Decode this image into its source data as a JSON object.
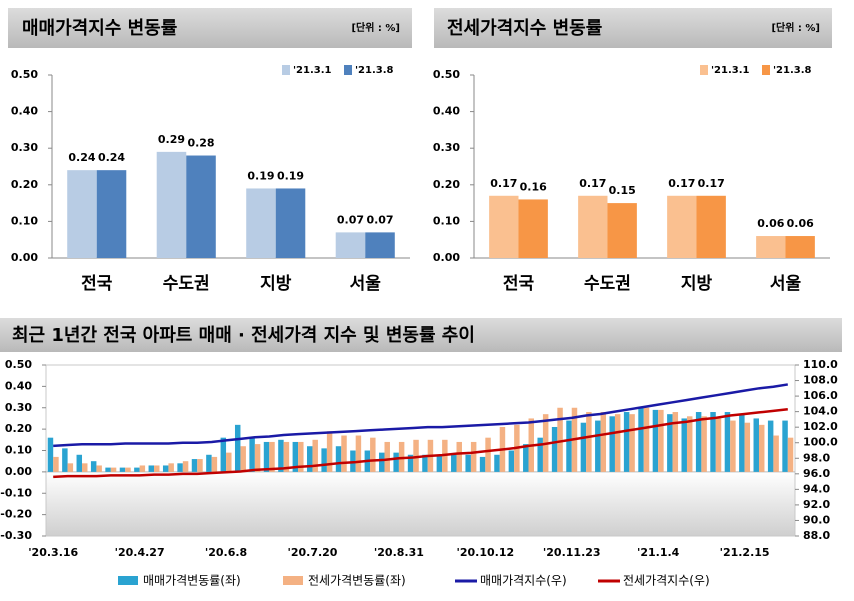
{
  "chart_data": [
    {
      "type": "bar",
      "title": "매매가격지수 변동률",
      "unit": "[단위 : %]",
      "categories": [
        "전국",
        "수도권",
        "지방",
        "서울"
      ],
      "series": [
        {
          "name": "'21.3.1",
          "color": "#b8cce4",
          "values": [
            0.24,
            0.29,
            0.19,
            0.07
          ]
        },
        {
          "name": "'21.3.8",
          "color": "#4f81bd",
          "values": [
            0.24,
            0.28,
            0.19,
            0.07
          ]
        }
      ],
      "ylim": [
        0,
        0.5
      ],
      "yticks": [
        {
          "value": 0,
          "label": "0.00"
        },
        {
          "value": 0.1,
          "label": "0.10"
        },
        {
          "value": 0.2,
          "label": "0.20"
        },
        {
          "value": 0.3,
          "label": "0.30"
        },
        {
          "value": 0.4,
          "label": "0.40"
        },
        {
          "value": 0.5,
          "label": "0.50"
        }
      ],
      "legend": "top-right"
    },
    {
      "type": "bar",
      "title": "전세가격지수 변동률",
      "unit": "[단위 : %]",
      "categories": [
        "전국",
        "수도권",
        "지방",
        "서울"
      ],
      "series": [
        {
          "name": "'21.3.1",
          "color": "#fac090",
          "values": [
            0.17,
            0.17,
            0.17,
            0.06
          ]
        },
        {
          "name": "'21.3.8",
          "color": "#f79646",
          "values": [
            0.16,
            0.15,
            0.17,
            0.06
          ]
        }
      ],
      "ylim": [
        0,
        0.5
      ],
      "yticks": [
        {
          "value": 0,
          "label": "0.00"
        },
        {
          "value": 0.1,
          "label": "0.10"
        },
        {
          "value": 0.2,
          "label": "0.20"
        },
        {
          "value": 0.3,
          "label": "0.30"
        },
        {
          "value": 0.4,
          "label": "0.40"
        },
        {
          "value": 0.5,
          "label": "0.50"
        }
      ],
      "legend": "top-right"
    },
    {
      "type": "combo",
      "title": "최근 1년간 전국 아파트 매매 · 전세가격 지수 및 변동률 추이",
      "categories": [
        "'20.3.16",
        null,
        null,
        null,
        null,
        null,
        "'20.4.27",
        null,
        null,
        null,
        null,
        null,
        "'20.6.8",
        null,
        null,
        null,
        null,
        null,
        "'20.7.20",
        null,
        null,
        null,
        null,
        null,
        "'20.8.31",
        null,
        null,
        null,
        null,
        null,
        "'20.10.12",
        null,
        null,
        null,
        null,
        null,
        "'20.11.23",
        null,
        null,
        null,
        null,
        null,
        "'21.1.4",
        null,
        null,
        null,
        null,
        null,
        "'21.2.15",
        null,
        null,
        null
      ],
      "series": [
        {
          "name": "매매가격변동률(좌)",
          "kind": "bar",
          "color": "#2aa3d1",
          "values": [
            0.16,
            0.11,
            0.08,
            0.05,
            0.02,
            0.02,
            0.02,
            0.03,
            0.03,
            0.04,
            0.06,
            0.08,
            0.16,
            0.22,
            0.16,
            0.14,
            0.15,
            0.14,
            0.12,
            0.11,
            0.12,
            0.1,
            0.1,
            0.09,
            0.09,
            0.08,
            0.08,
            0.08,
            0.08,
            0.08,
            0.07,
            0.08,
            0.1,
            0.13,
            0.16,
            0.21,
            0.24,
            0.23,
            0.24,
            0.26,
            0.28,
            0.3,
            0.29,
            0.27,
            0.25,
            0.28,
            0.28,
            0.28,
            0.27,
            0.25,
            0.24,
            0.24
          ]
        },
        {
          "name": "전세가격변동률(좌)",
          "kind": "bar",
          "color": "#f4b183",
          "values": [
            0.07,
            0.04,
            0.04,
            0.03,
            0.02,
            0.02,
            0.03,
            0.03,
            0.04,
            0.05,
            0.06,
            0.07,
            0.09,
            0.12,
            0.13,
            0.14,
            0.14,
            0.14,
            0.15,
            0.19,
            0.17,
            0.17,
            0.16,
            0.14,
            0.14,
            0.15,
            0.15,
            0.15,
            0.14,
            0.14,
            0.16,
            0.21,
            0.22,
            0.25,
            0.27,
            0.3,
            0.3,
            0.28,
            0.28,
            0.27,
            0.27,
            0.3,
            0.29,
            0.28,
            0.26,
            0.26,
            0.25,
            0.24,
            0.23,
            0.22,
            0.17,
            0.16
          ]
        },
        {
          "name": "매매가격지수(우)",
          "kind": "line",
          "axis": "y2",
          "color": "#1a1aa6",
          "values": [
            99.6,
            99.7,
            99.8,
            99.8,
            99.8,
            99.9,
            99.9,
            99.9,
            99.9,
            100.0,
            100.0,
            100.1,
            100.3,
            100.5,
            100.7,
            100.8,
            101.0,
            101.1,
            101.2,
            101.3,
            101.4,
            101.5,
            101.6,
            101.7,
            101.8,
            101.9,
            102.0,
            102.0,
            102.1,
            102.2,
            102.3,
            102.4,
            102.5,
            102.6,
            102.8,
            103.0,
            103.2,
            103.5,
            103.7,
            104.0,
            104.3,
            104.6,
            104.9,
            105.2,
            105.5,
            105.8,
            106.1,
            106.4,
            106.7,
            107.0,
            107.2,
            107.5
          ]
        },
        {
          "name": "전세가격지수(우)",
          "kind": "line",
          "axis": "y2",
          "color": "#c00000",
          "values": [
            95.6,
            95.7,
            95.7,
            95.7,
            95.8,
            95.8,
            95.8,
            95.9,
            95.9,
            96.0,
            96.0,
            96.1,
            96.2,
            96.3,
            96.5,
            96.6,
            96.7,
            96.9,
            97.0,
            97.2,
            97.4,
            97.5,
            97.7,
            97.8,
            98.0,
            98.1,
            98.3,
            98.4,
            98.6,
            98.7,
            98.9,
            99.1,
            99.3,
            99.6,
            99.8,
            100.1,
            100.4,
            100.7,
            101.0,
            101.3,
            101.6,
            101.9,
            102.2,
            102.5,
            102.7,
            103.0,
            103.2,
            103.5,
            103.7,
            103.9,
            104.1,
            104.3
          ]
        }
      ],
      "ylim": [
        -0.3,
        0.5
      ],
      "yticks": [
        {
          "value": -0.3,
          "label": "-0.30"
        },
        {
          "value": -0.2,
          "label": "-0.20"
        },
        {
          "value": -0.1,
          "label": "-0.10"
        },
        {
          "value": 0,
          "label": "0.00"
        },
        {
          "value": 0.1,
          "label": "0.10"
        },
        {
          "value": 0.2,
          "label": "0.20"
        },
        {
          "value": 0.3,
          "label": "0.30"
        },
        {
          "value": 0.4,
          "label": "0.40"
        },
        {
          "value": 0.5,
          "label": "0.50"
        }
      ],
      "y2lim": [
        88,
        110
      ],
      "y2ticks": [
        {
          "value": 88,
          "label": "88.0"
        },
        {
          "value": 90,
          "label": "90.0"
        },
        {
          "value": 92,
          "label": "92.0"
        },
        {
          "value": 94,
          "label": "94.0"
        },
        {
          "value": 96,
          "label": "96.0"
        },
        {
          "value": 98,
          "label": "98.0"
        },
        {
          "value": 100,
          "label": "100.0"
        },
        {
          "value": 102,
          "label": "102.0"
        },
        {
          "value": 104,
          "label": "104.0"
        },
        {
          "value": 106,
          "label": "106.0"
        },
        {
          "value": 108,
          "label": "108.0"
        },
        {
          "value": 110,
          "label": "110.0"
        }
      ],
      "legend": "bottom"
    }
  ]
}
